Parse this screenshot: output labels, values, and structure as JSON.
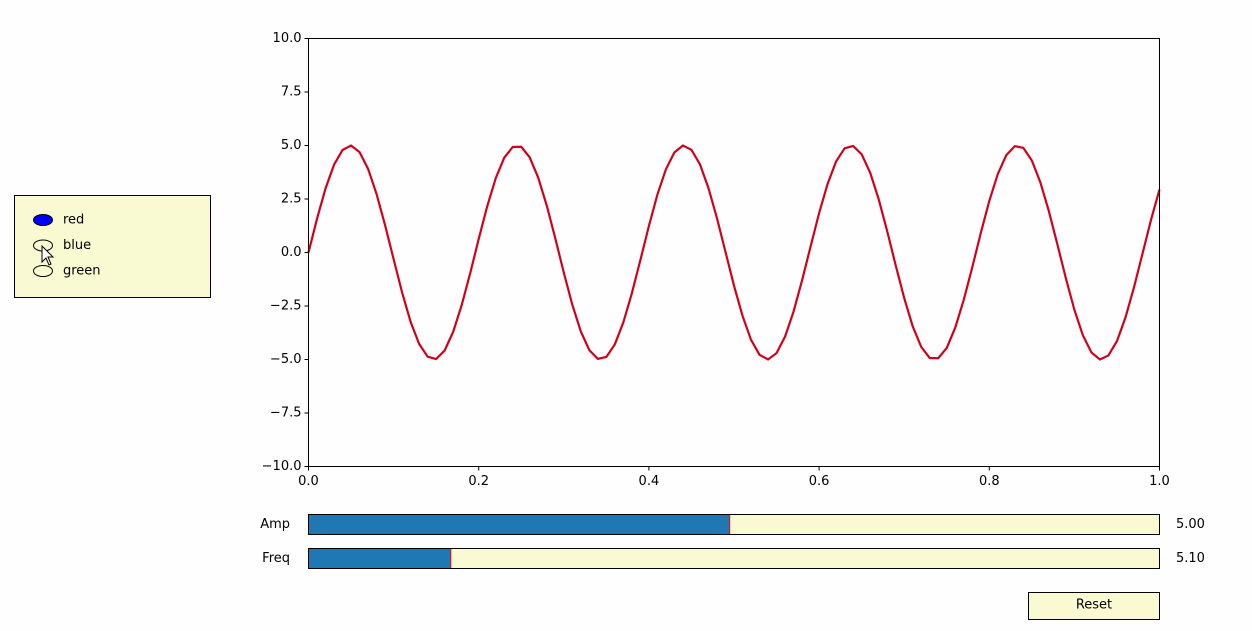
{
  "chart_data": {
    "type": "line",
    "x": [
      0,
      0.01,
      0.02,
      0.03,
      0.04,
      0.05,
      0.06,
      0.07,
      0.08,
      0.09,
      0.1,
      0.11,
      0.12,
      0.13,
      0.14,
      0.15,
      0.16,
      0.17,
      0.18,
      0.19,
      0.2,
      0.21,
      0.22,
      0.23,
      0.24,
      0.25,
      0.26,
      0.27,
      0.28,
      0.29,
      0.3,
      0.31,
      0.32,
      0.33,
      0.34,
      0.35,
      0.36,
      0.37,
      0.38,
      0.39,
      0.4,
      0.41,
      0.42,
      0.43,
      0.44,
      0.45,
      0.46,
      0.47,
      0.48,
      0.49,
      0.5,
      0.51,
      0.52,
      0.53,
      0.54,
      0.55,
      0.56,
      0.57,
      0.58,
      0.59,
      0.6,
      0.61,
      0.62,
      0.63,
      0.64,
      0.65,
      0.66,
      0.67,
      0.68,
      0.69,
      0.7,
      0.71,
      0.72,
      0.73,
      0.74,
      0.75,
      0.76,
      0.77,
      0.78,
      0.79,
      0.8,
      0.81,
      0.82,
      0.83,
      0.84,
      0.85,
      0.86,
      0.87,
      0.88,
      0.89,
      0.9,
      0.91,
      0.92,
      0.93,
      0.94,
      0.95,
      0.96,
      0.97,
      0.98,
      0.99,
      1
    ],
    "series": [
      {
        "color": "#d0021b",
        "values": [
          0,
          1.575,
          2.99,
          4.1,
          4.79,
          5.0,
          4.69,
          3.91,
          2.73,
          1.27,
          -0.31,
          -1.87,
          -3.24,
          -4.27,
          -4.87,
          -4.98,
          -4.58,
          -3.71,
          -2.46,
          -0.97,
          0.63,
          2.16,
          3.47,
          4.43,
          4.93,
          4.94,
          4.44,
          3.49,
          2.19,
          0.66,
          -0.94,
          -2.44,
          -3.69,
          -4.56,
          -4.97,
          -4.88,
          -4.29,
          -3.26,
          -1.9,
          -0.35,
          1.24,
          2.71,
          3.89,
          4.68,
          5.0,
          4.8,
          4.12,
          3.01,
          1.6,
          0.03,
          -1.55,
          -2.96,
          -4.08,
          -4.78,
          -5.0,
          -4.7,
          -3.93,
          -2.76,
          -1.3,
          0.28,
          1.84,
          3.21,
          4.26,
          4.87,
          4.98,
          4.59,
          3.73,
          2.49,
          1.0,
          -0.6,
          -2.13,
          -3.45,
          -4.41,
          -4.93,
          -4.94,
          -4.46,
          -3.51,
          -2.21,
          -0.69,
          0.91,
          2.41,
          3.67,
          4.55,
          4.97,
          4.89,
          4.3,
          3.28,
          1.93,
          0.38,
          -1.21,
          -2.68,
          -3.87,
          -4.67,
          -5.0,
          -4.81,
          -4.14,
          -3.04,
          -1.63,
          -0.06,
          1.52,
          2.94
        ]
      }
    ],
    "xlim": [
      0,
      1
    ],
    "ylim": [
      -10,
      10
    ],
    "xticks": [
      {
        "value": 0,
        "label": "0.0"
      },
      {
        "value": 0.2,
        "label": "0.2"
      },
      {
        "value": 0.4,
        "label": "0.4"
      },
      {
        "value": 0.6,
        "label": "0.6"
      },
      {
        "value": 0.8,
        "label": "0.8"
      },
      {
        "value": 1,
        "label": "1.0"
      }
    ],
    "yticks": [
      {
        "value": -10,
        "label": "−10.0"
      },
      {
        "value": -7.5,
        "label": "−7.5"
      },
      {
        "value": -5,
        "label": "−5.0"
      },
      {
        "value": -2.5,
        "label": "−2.5"
      },
      {
        "value": 0,
        "label": "0.0"
      },
      {
        "value": 2.5,
        "label": "2.5"
      },
      {
        "value": 5,
        "label": "5.0"
      },
      {
        "value": 7.5,
        "label": "7.5"
      },
      {
        "value": 10,
        "label": "10.0"
      }
    ]
  },
  "radio": {
    "options": [
      "red",
      "blue",
      "green"
    ],
    "selected": 0
  },
  "sliders": [
    {
      "label": "Amp",
      "value": 5,
      "value_label": "5.00",
      "min": 0.1,
      "max": 10
    },
    {
      "label": "Freq",
      "value": 5.1,
      "value_label": "5.10",
      "min": 0.1,
      "max": 30
    }
  ],
  "button": {
    "label": "Reset"
  }
}
